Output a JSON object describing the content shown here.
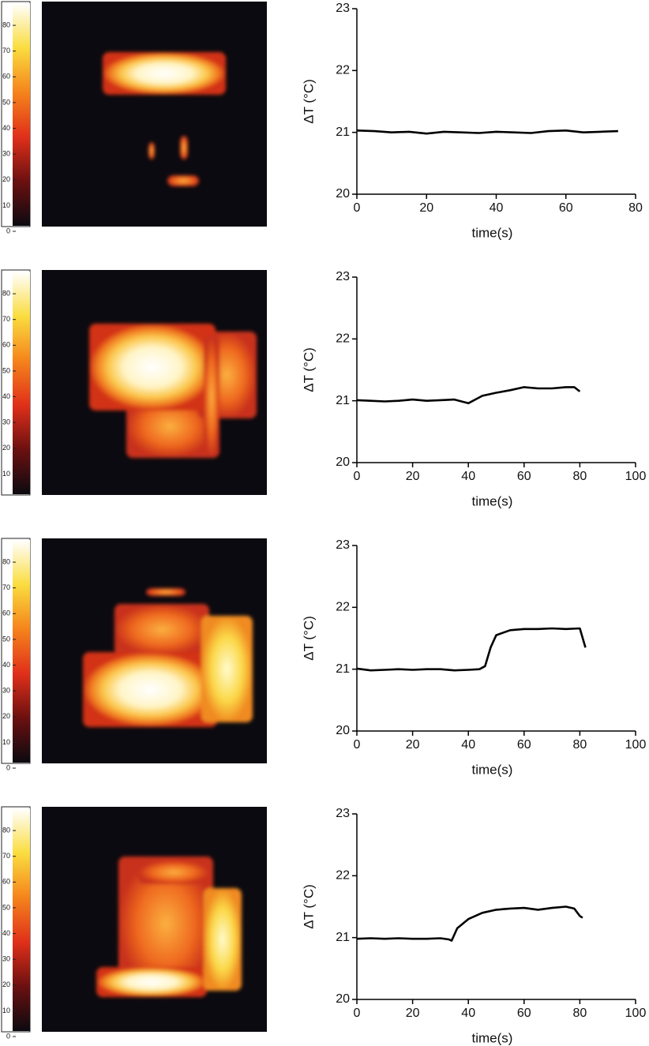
{
  "chart_data": [
    {
      "type": "heatmap",
      "clim": [
        0,
        88
      ],
      "cticks": [
        0,
        10,
        20,
        30,
        40,
        50,
        60,
        70,
        80
      ]
    },
    {
      "type": "line",
      "x_label": "time(s)",
      "y_label": "ΔT (°C)",
      "xlim": [
        0,
        80
      ],
      "xticks": [
        0,
        20,
        40,
        60,
        80
      ],
      "ylim": [
        20,
        23
      ],
      "yticks": [
        20,
        21,
        22,
        23
      ],
      "color": "#000000",
      "x": [
        0,
        5,
        10,
        15,
        20,
        25,
        30,
        35,
        40,
        45,
        50,
        55,
        60,
        65,
        70,
        75
      ],
      "values": [
        21.03,
        21.02,
        21.0,
        21.01,
        20.98,
        21.01,
        21.0,
        20.99,
        21.01,
        21.0,
        20.99,
        21.02,
        21.03,
        21.0,
        21.01,
        21.02
      ]
    },
    {
      "type": "heatmap",
      "clim": [
        0,
        88
      ],
      "cticks": [
        10,
        20,
        30,
        40,
        50,
        60,
        70,
        80
      ]
    },
    {
      "type": "line",
      "x_label": "time(s)",
      "y_label": "ΔT (°C)",
      "xlim": [
        0,
        100
      ],
      "xticks": [
        0,
        20,
        40,
        60,
        80,
        100
      ],
      "ylim": [
        20,
        23
      ],
      "yticks": [
        20,
        21,
        22,
        23
      ],
      "color": "#000000",
      "x": [
        0,
        5,
        10,
        15,
        20,
        25,
        30,
        35,
        40,
        45,
        50,
        55,
        60,
        65,
        70,
        75,
        78,
        80
      ],
      "values": [
        21.01,
        21.0,
        20.99,
        21.0,
        21.02,
        21.0,
        21.01,
        21.02,
        20.96,
        21.08,
        21.13,
        21.17,
        21.22,
        21.2,
        21.2,
        21.22,
        21.22,
        21.15
      ]
    },
    {
      "type": "heatmap",
      "clim": [
        0,
        88
      ],
      "cticks": [
        0,
        10,
        20,
        30,
        40,
        50,
        60,
        70,
        80
      ]
    },
    {
      "type": "line",
      "x_label": "time(s)",
      "y_label": "ΔT (°C)",
      "xlim": [
        0,
        100
      ],
      "xticks": [
        0,
        20,
        40,
        60,
        80,
        100
      ],
      "ylim": [
        20,
        23
      ],
      "yticks": [
        20,
        21,
        22,
        23
      ],
      "color": "#000000",
      "x": [
        0,
        5,
        10,
        15,
        20,
        25,
        30,
        35,
        40,
        44,
        46,
        48,
        50,
        55,
        60,
        65,
        70,
        75,
        80,
        82
      ],
      "values": [
        21.01,
        20.98,
        20.99,
        21.0,
        20.99,
        21.0,
        21.0,
        20.98,
        20.99,
        21.0,
        21.05,
        21.35,
        21.55,
        21.63,
        21.65,
        21.65,
        21.66,
        21.65,
        21.66,
        21.35
      ]
    },
    {
      "type": "heatmap",
      "clim": [
        0,
        88
      ],
      "cticks": [
        0,
        10,
        20,
        30,
        40,
        50,
        60,
        70,
        80
      ]
    },
    {
      "type": "line",
      "x_label": "time(s)",
      "y_label": "ΔT (°C)",
      "xlim": [
        0,
        100
      ],
      "xticks": [
        0,
        20,
        40,
        60,
        80,
        100
      ],
      "ylim": [
        20,
        23
      ],
      "yticks": [
        20,
        21,
        22,
        23
      ],
      "color": "#000000",
      "x": [
        0,
        5,
        10,
        15,
        20,
        25,
        30,
        33,
        34,
        36,
        40,
        45,
        50,
        55,
        60,
        65,
        70,
        75,
        78,
        80,
        81
      ],
      "values": [
        20.98,
        20.99,
        20.98,
        20.99,
        20.98,
        20.98,
        20.99,
        20.97,
        20.95,
        21.15,
        21.3,
        21.4,
        21.45,
        21.47,
        21.48,
        21.45,
        21.48,
        21.5,
        21.47,
        21.35,
        21.32
      ]
    }
  ]
}
